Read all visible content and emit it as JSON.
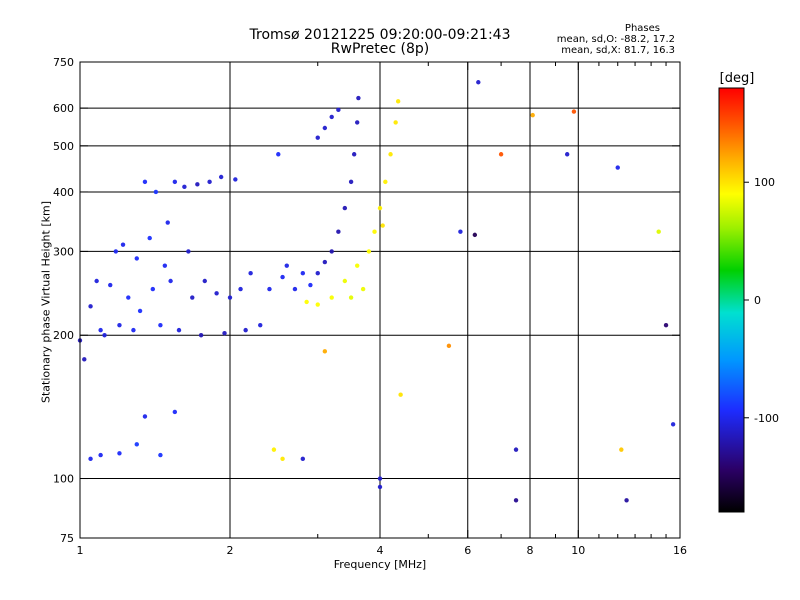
{
  "chart_data": {
    "type": "scatter",
    "title": "Tromsø 20121225 09:20:00-09:21:43",
    "subtitle": "RwPretec (8p)",
    "xlabel": "Frequency [MHz]",
    "ylabel": "Stationary phase Virtual Height [km]",
    "x_scale": "log",
    "y_scale": "log",
    "xlim": [
      1,
      16
    ],
    "ylim": [
      75,
      750
    ],
    "x_ticks": [
      1,
      2,
      4,
      6,
      8,
      10,
      16
    ],
    "x_tick_labels": [
      "1",
      "2",
      "4",
      "6",
      "8",
      "10",
      "16"
    ],
    "y_ticks": [
      75,
      100,
      200,
      300,
      400,
      500,
      600,
      750
    ],
    "y_tick_labels": [
      "75",
      "100",
      "200",
      "300",
      "400",
      "500",
      "600",
      "750"
    ],
    "grid": true,
    "stats": {
      "label": "Phases",
      "o_mode": "mean, sd,O: -88.2, 17.2",
      "x_mode": "mean, sd,X: 81.7, 16.3"
    },
    "colorbar": {
      "unit": "[deg]",
      "range": [
        -180,
        180
      ],
      "ticks": [
        100,
        0,
        -100
      ],
      "tick_labels": [
        "100",
        "0",
        "-100"
      ]
    },
    "series": [
      {
        "points": [
          [
            1.0,
            195,
            -115
          ],
          [
            1.02,
            178,
            -115
          ],
          [
            1.05,
            230,
            -110
          ],
          [
            1.08,
            260,
            -105
          ],
          [
            1.1,
            205,
            -100
          ],
          [
            1.12,
            200,
            -105
          ],
          [
            1.15,
            255,
            -100
          ],
          [
            1.18,
            300,
            -98
          ],
          [
            1.2,
            210,
            -102
          ],
          [
            1.22,
            310,
            -100
          ],
          [
            1.25,
            240,
            -95
          ],
          [
            1.28,
            205,
            -98
          ],
          [
            1.3,
            290,
            -95
          ],
          [
            1.32,
            225,
            -92
          ],
          [
            1.35,
            420,
            -95
          ],
          [
            1.38,
            320,
            -92
          ],
          [
            1.4,
            250,
            -95
          ],
          [
            1.42,
            400,
            -90
          ],
          [
            1.45,
            210,
            -95
          ],
          [
            1.48,
            280,
            -98
          ],
          [
            1.5,
            345,
            -100
          ],
          [
            1.52,
            260,
            -100
          ],
          [
            1.55,
            420,
            -100
          ],
          [
            1.58,
            205,
            -105
          ],
          [
            1.62,
            410,
            -108
          ],
          [
            1.65,
            300,
            -110
          ],
          [
            1.68,
            240,
            -112
          ],
          [
            1.72,
            415,
            -115
          ],
          [
            1.75,
            200,
            -118
          ],
          [
            1.78,
            260,
            -112
          ],
          [
            1.82,
            420,
            -110
          ],
          [
            1.88,
            245,
            -110
          ],
          [
            1.92,
            430,
            -108
          ],
          [
            1.95,
            202,
            -115
          ],
          [
            2.0,
            240,
            -108
          ],
          [
            2.05,
            425,
            -105
          ],
          [
            2.1,
            250,
            -105
          ],
          [
            2.15,
            205,
            -110
          ],
          [
            2.2,
            270,
            -105
          ],
          [
            2.3,
            210,
            -105
          ],
          [
            2.4,
            250,
            -100
          ],
          [
            2.5,
            480,
            -95
          ],
          [
            2.55,
            265,
            -98
          ],
          [
            2.6,
            280,
            -102
          ],
          [
            2.7,
            250,
            -100
          ],
          [
            2.8,
            270,
            -98
          ],
          [
            2.9,
            255,
            -95
          ],
          [
            3.0,
            270,
            -110
          ],
          [
            3.1,
            285,
            -115
          ],
          [
            3.2,
            300,
            -120
          ],
          [
            3.3,
            330,
            -120
          ],
          [
            3.4,
            370,
            -118
          ],
          [
            3.5,
            420,
            -115
          ],
          [
            3.55,
            480,
            -115
          ],
          [
            3.6,
            560,
            -115
          ],
          [
            3.62,
            630,
            -115
          ],
          [
            3.0,
            520,
            -110
          ],
          [
            3.1,
            545,
            -110
          ],
          [
            3.2,
            575,
            -110
          ],
          [
            3.3,
            595,
            -110
          ],
          [
            2.85,
            235,
            90
          ],
          [
            3.0,
            232,
            90
          ],
          [
            3.2,
            240,
            88
          ],
          [
            3.4,
            260,
            85
          ],
          [
            3.6,
            280,
            88
          ],
          [
            3.8,
            300,
            90
          ],
          [
            3.9,
            330,
            92
          ],
          [
            4.0,
            370,
            95
          ],
          [
            4.1,
            420,
            95
          ],
          [
            4.2,
            480,
            98
          ],
          [
            4.3,
            560,
            98
          ],
          [
            4.35,
            620,
            98
          ],
          [
            3.7,
            250,
            85
          ],
          [
            3.5,
            240,
            82
          ],
          [
            4.05,
            340,
            100
          ],
          [
            1.05,
            110,
            -100
          ],
          [
            1.1,
            112,
            -98
          ],
          [
            1.2,
            113,
            -95
          ],
          [
            1.3,
            118,
            -88
          ],
          [
            1.35,
            135,
            -100
          ],
          [
            1.55,
            138,
            -95
          ],
          [
            1.45,
            112,
            -90
          ],
          [
            2.45,
            115,
            95
          ],
          [
            2.55,
            110,
            98
          ],
          [
            2.8,
            110,
            -110
          ],
          [
            5.8,
            330,
            -105
          ],
          [
            6.2,
            325,
            -150
          ],
          [
            6.3,
            680,
            -110
          ],
          [
            7.5,
            115,
            -115
          ],
          [
            7.5,
            90,
            -130
          ],
          [
            9.5,
            480,
            -110
          ],
          [
            12.5,
            90,
            -125
          ],
          [
            12.0,
            450,
            -100
          ],
          [
            14.5,
            330,
            80
          ],
          [
            15.5,
            130,
            -105
          ],
          [
            4.4,
            150,
            100
          ],
          [
            5.5,
            190,
            130
          ],
          [
            7.0,
            480,
            150
          ],
          [
            8.1,
            580,
            120
          ],
          [
            9.8,
            590,
            150
          ],
          [
            3.1,
            185,
            120
          ],
          [
            4.0,
            100,
            -110
          ],
          [
            4.0,
            96,
            -110
          ],
          [
            12.2,
            115,
            110
          ],
          [
            15.0,
            210,
            -140
          ]
        ]
      }
    ]
  }
}
